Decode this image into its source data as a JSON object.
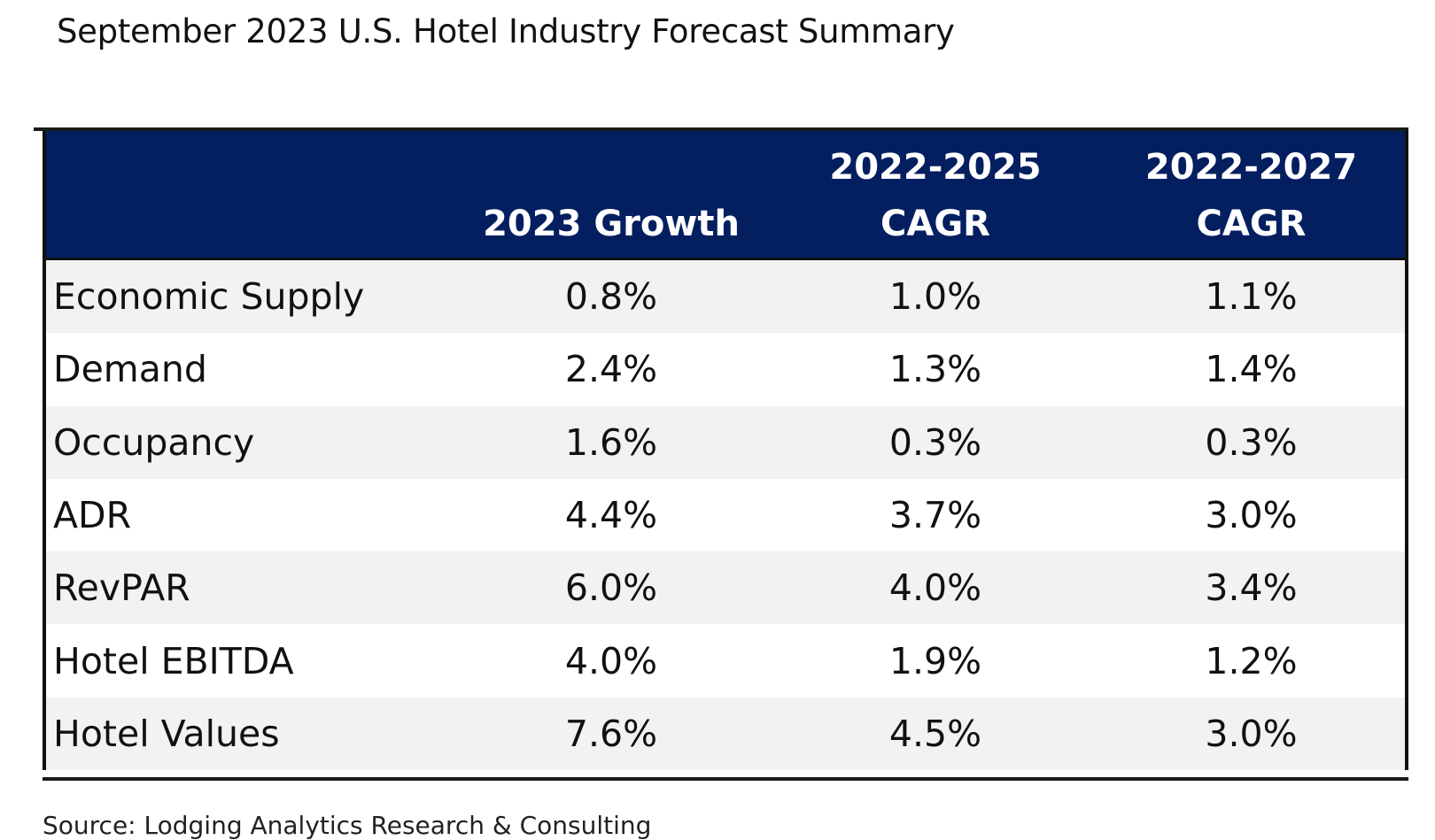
{
  "title": "September 2023 U.S. Hotel Industry Forecast Summary",
  "table": {
    "headers": [
      {
        "line1": "",
        "line2": ""
      },
      {
        "line1": "",
        "line2": "2023 Growth"
      },
      {
        "line1": "2022-2025",
        "line2": "CAGR"
      },
      {
        "line1": "2022-2027",
        "line2": "CAGR"
      }
    ],
    "rows": [
      {
        "label": "Economic Supply",
        "g2023": "0.8%",
        "cagr2025": "1.0%",
        "cagr2027": "1.1%"
      },
      {
        "label": "Demand",
        "g2023": "2.4%",
        "cagr2025": "1.3%",
        "cagr2027": "1.4%"
      },
      {
        "label": "Occupancy",
        "g2023": "1.6%",
        "cagr2025": "0.3%",
        "cagr2027": "0.3%"
      },
      {
        "label": "ADR",
        "g2023": "4.4%",
        "cagr2025": "3.7%",
        "cagr2027": "3.0%"
      },
      {
        "label": "RevPAR",
        "g2023": "6.0%",
        "cagr2025": "4.0%",
        "cagr2027": "3.4%"
      },
      {
        "label": "Hotel EBITDA",
        "g2023": "4.0%",
        "cagr2025": "1.9%",
        "cagr2027": "1.2%"
      },
      {
        "label": "Hotel Values",
        "g2023": "7.6%",
        "cagr2025": "4.5%",
        "cagr2027": "3.0%"
      }
    ]
  },
  "source": "Source: Lodging Analytics Research & Consulting",
  "colors": {
    "header_bg": "#041f60",
    "stripe": "#f2f2f2"
  }
}
